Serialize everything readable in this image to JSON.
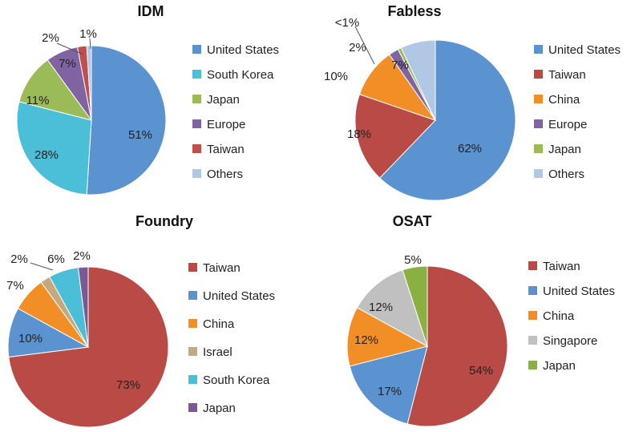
{
  "chart_data": [
    {
      "type": "pie",
      "title": "IDM",
      "slices": [
        {
          "label": "United States",
          "value": 51,
          "display": "51%",
          "color": "#5b92d0"
        },
        {
          "label": "South Korea",
          "value": 28,
          "display": "28%",
          "color": "#4bbfd7"
        },
        {
          "label": "Japan",
          "value": 11,
          "display": "11%",
          "color": "#9bbb59"
        },
        {
          "label": "Europe",
          "value": 7,
          "display": "7%",
          "color": "#8064a2"
        },
        {
          "label": "Taiwan",
          "value": 2,
          "display": "2%",
          "color": "#c0504d"
        },
        {
          "label": "Others",
          "value": 1,
          "display": "1%",
          "color": "#b0c8e4"
        }
      ],
      "legend_position": "right"
    },
    {
      "type": "pie",
      "title": "Fabless",
      "slices": [
        {
          "label": "United States",
          "value": 62,
          "display": "62%",
          "color": "#5b92d0"
        },
        {
          "label": "Taiwan",
          "value": 18,
          "display": "18%",
          "color": "#b94a45"
        },
        {
          "label": "China",
          "value": 10,
          "display": "10%",
          "color": "#f28e26"
        },
        {
          "label": "Europe",
          "value": 2,
          "display": "2%",
          "color": "#8064a2"
        },
        {
          "label": "Japan",
          "value": 0.7,
          "display": "<1%",
          "color": "#9bbb59"
        },
        {
          "label": "Others",
          "value": 7,
          "display": "7%",
          "color": "#b0c8e4"
        }
      ],
      "legend_position": "right"
    },
    {
      "type": "pie",
      "title": "Foundry",
      "slices": [
        {
          "label": "Taiwan",
          "value": 73,
          "display": "73%",
          "color": "#b94a45"
        },
        {
          "label": "United States",
          "value": 10,
          "display": "10%",
          "color": "#5b92d0"
        },
        {
          "label": "China",
          "value": 7,
          "display": "7%",
          "color": "#f28e26"
        },
        {
          "label": "Israel",
          "value": 2,
          "display": "2%",
          "color": "#c4a97d"
        },
        {
          "label": "South Korea",
          "value": 6,
          "display": "6%",
          "color": "#4bbfd7"
        },
        {
          "label": "Japan",
          "value": 2,
          "display": "2%",
          "color": "#7a5a96"
        }
      ],
      "legend_position": "right"
    },
    {
      "type": "pie",
      "title": "OSAT",
      "slices": [
        {
          "label": "Taiwan",
          "value": 54,
          "display": "54%",
          "color": "#b94a45"
        },
        {
          "label": "United States",
          "value": 17,
          "display": "17%",
          "color": "#5b92d0"
        },
        {
          "label": "China",
          "value": 12,
          "display": "12%",
          "color": "#f28e26"
        },
        {
          "label": "Singapore",
          "value": 12,
          "display": "12%",
          "color": "#c0c0c0"
        },
        {
          "label": "Japan",
          "value": 5,
          "display": "5%",
          "color": "#8bb042"
        }
      ],
      "legend_position": "right"
    }
  ]
}
